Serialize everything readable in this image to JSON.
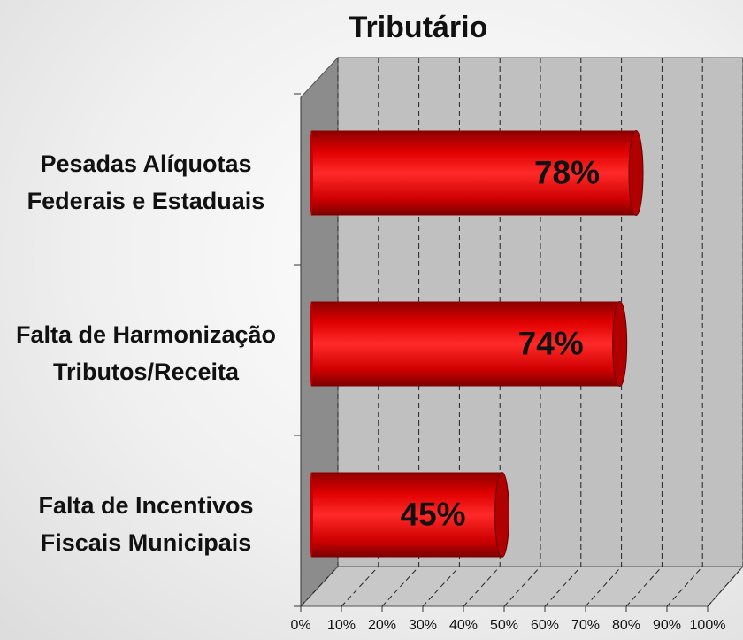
{
  "chart_data": {
    "type": "bar",
    "orientation": "horizontal",
    "title": "Tributário",
    "categories": [
      "Pesadas Alíquotas Federais e Estaduais",
      "Falta de Harmonização Tributos/Receita",
      "Falta de Incentivos Fiscais Municipais"
    ],
    "values": [
      78,
      74,
      45
    ],
    "value_labels": [
      "78%",
      "74%",
      "45%"
    ],
    "color": "#ee0000",
    "xlim": [
      0,
      100
    ],
    "xticks": [
      {
        "value": 0,
        "label": "0%"
      },
      {
        "value": 10,
        "label": "10%"
      },
      {
        "value": 20,
        "label": "20%"
      },
      {
        "value": 30,
        "label": "30%"
      },
      {
        "value": 40,
        "label": "40%"
      },
      {
        "value": 50,
        "label": "50%"
      },
      {
        "value": 60,
        "label": "60%"
      },
      {
        "value": 70,
        "label": "70%"
      },
      {
        "value": 80,
        "label": "80%"
      },
      {
        "value": 90,
        "label": "90%"
      },
      {
        "value": 100,
        "label": "100%"
      }
    ],
    "grid": true
  }
}
